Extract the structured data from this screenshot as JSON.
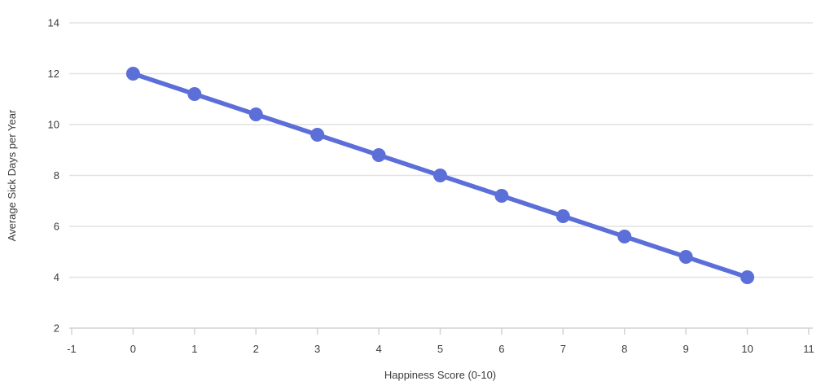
{
  "chart": {
    "title": "",
    "x_axis_title": "Happiness Score (0-10)",
    "y_axis_title": "Average Sick Days per Year"
  },
  "chart_data": {
    "type": "line",
    "x": [
      0,
      1,
      2,
      3,
      4,
      5,
      6,
      7,
      8,
      9,
      10
    ],
    "y": [
      12,
      11.2,
      10.4,
      9.6,
      8.8,
      8,
      7.2,
      6.4,
      5.6,
      4.8,
      4
    ],
    "xlabel": "Happiness Score (0-10)",
    "ylabel": "Average Sick Days per Year",
    "xlim": [
      -1,
      11
    ],
    "ylim": [
      2,
      14
    ],
    "xtick_labels": [
      "-1",
      "0",
      "1",
      "2",
      "3",
      "4",
      "5",
      "6",
      "7",
      "8",
      "9",
      "10",
      "11"
    ],
    "xticks": [
      -1,
      0,
      1,
      2,
      3,
      4,
      5,
      6,
      7,
      8,
      9,
      10,
      11
    ],
    "ytick_labels": [
      "2",
      "4",
      "6",
      "8",
      "10",
      "12",
      "14"
    ],
    "yticks": [
      2,
      4,
      6,
      8,
      10,
      12,
      14
    ],
    "grid": "horizontal-only",
    "legend": "none",
    "line_color": "#5c6fd9",
    "marker_color": "#5c6fd9",
    "grid_color": "#e2e2e2",
    "axis_line_color": "#d2d2d2",
    "tick_mark_color": "#d2d2d2",
    "tick_label_color": "#3b3b3b",
    "axis_title_color": "#3b3b3b"
  }
}
